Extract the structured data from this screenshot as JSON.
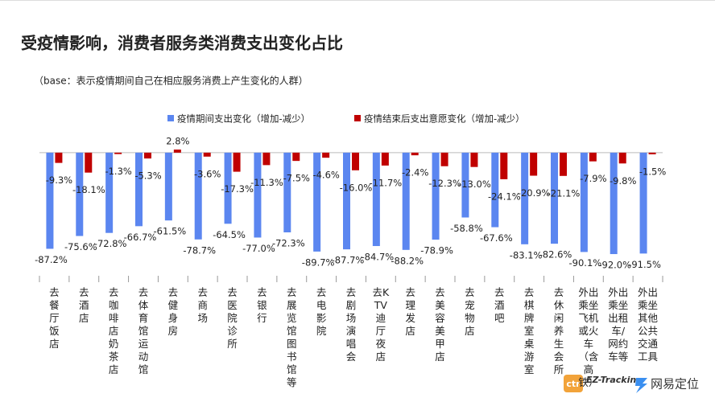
{
  "chart_data": {
    "type": "bar",
    "title": "受疫情影响，消费者服务类消费支出变化占比",
    "subtitle": "（base：表示疫情期间自己在相应服务消费上产生变化的人群）",
    "categories": [
      "去餐厅饭店",
      "去酒店",
      "去咖啡店奶茶店",
      "去体育馆运动馆",
      "去健身房",
      "去商场",
      "去医院诊所",
      "去银行",
      "去展览馆图书馆等",
      "去电影院",
      "去剧场演唱会",
      "去KTV迪厅夜店",
      "去理发店",
      "去美容美甲店",
      "去宠物店",
      "去酒吧",
      "去棋牌室桌游室",
      "去休闲养生会所",
      "外出乘坐飞机或火车（含高铁）",
      "外出乘坐出租车/网约车等",
      "外出乘坐其他公共交通工具"
    ],
    "series": [
      {
        "name": "疫情期间支出变化（增加-减少）",
        "color": "#5b86f0",
        "values": [
          -87.2,
          -75.6,
          -72.8,
          -66.7,
          -61.5,
          -78.7,
          -64.5,
          -77.0,
          -72.3,
          -89.7,
          -87.7,
          -84.7,
          -88.2,
          -78.9,
          -58.8,
          -67.6,
          -83.1,
          -82.6,
          -90.1,
          -92.0,
          -91.5
        ],
        "value_labels": [
          "-87.2%",
          "-75.6%",
          "-72.8%",
          "-66.7%",
          "-61.5%",
          "-78.7%",
          "-64.5%",
          "-77.0%",
          "-72.3%",
          "-89.7%",
          "-87.7%",
          "-84.7%",
          "-88.2%",
          "-78.9%",
          "-58.8%",
          "-67.6%",
          "-83.1%",
          "-82.6%",
          "-90.1%",
          "-92.0%",
          "-91.5%"
        ]
      },
      {
        "name": "疫情结束后支出意愿变化（增加-减少）",
        "color": "#c00000",
        "values": [
          -9.3,
          -18.1,
          -1.3,
          -5.3,
          2.8,
          -3.6,
          -17.3,
          -11.3,
          -7.5,
          -4.6,
          -16.0,
          -11.7,
          -2.4,
          -12.3,
          -13.0,
          -24.1,
          -20.9,
          -21.1,
          -7.9,
          -9.8,
          -1.5
        ],
        "value_labels": [
          "-9.3%",
          "-18.1%",
          "-1.3%",
          "-5.3%",
          "2.8%",
          "-3.6%",
          "-17.3%",
          "-11.3%",
          "-7.5%",
          "-4.6%",
          "-16.0%",
          "-11.7%",
          "-2.4%",
          "-12.3%",
          "-13.0%",
          "-24.1%",
          "-20.9%",
          "-21.1%",
          "-7.9%",
          "-9.8%",
          "-1.5%"
        ]
      }
    ],
    "ylim": [
      -100,
      5
    ],
    "legend": "top"
  },
  "footer": {
    "logo_mark": "ctr",
    "logo_1": "EZ-Tracking",
    "logo_2": "网易定位"
  }
}
